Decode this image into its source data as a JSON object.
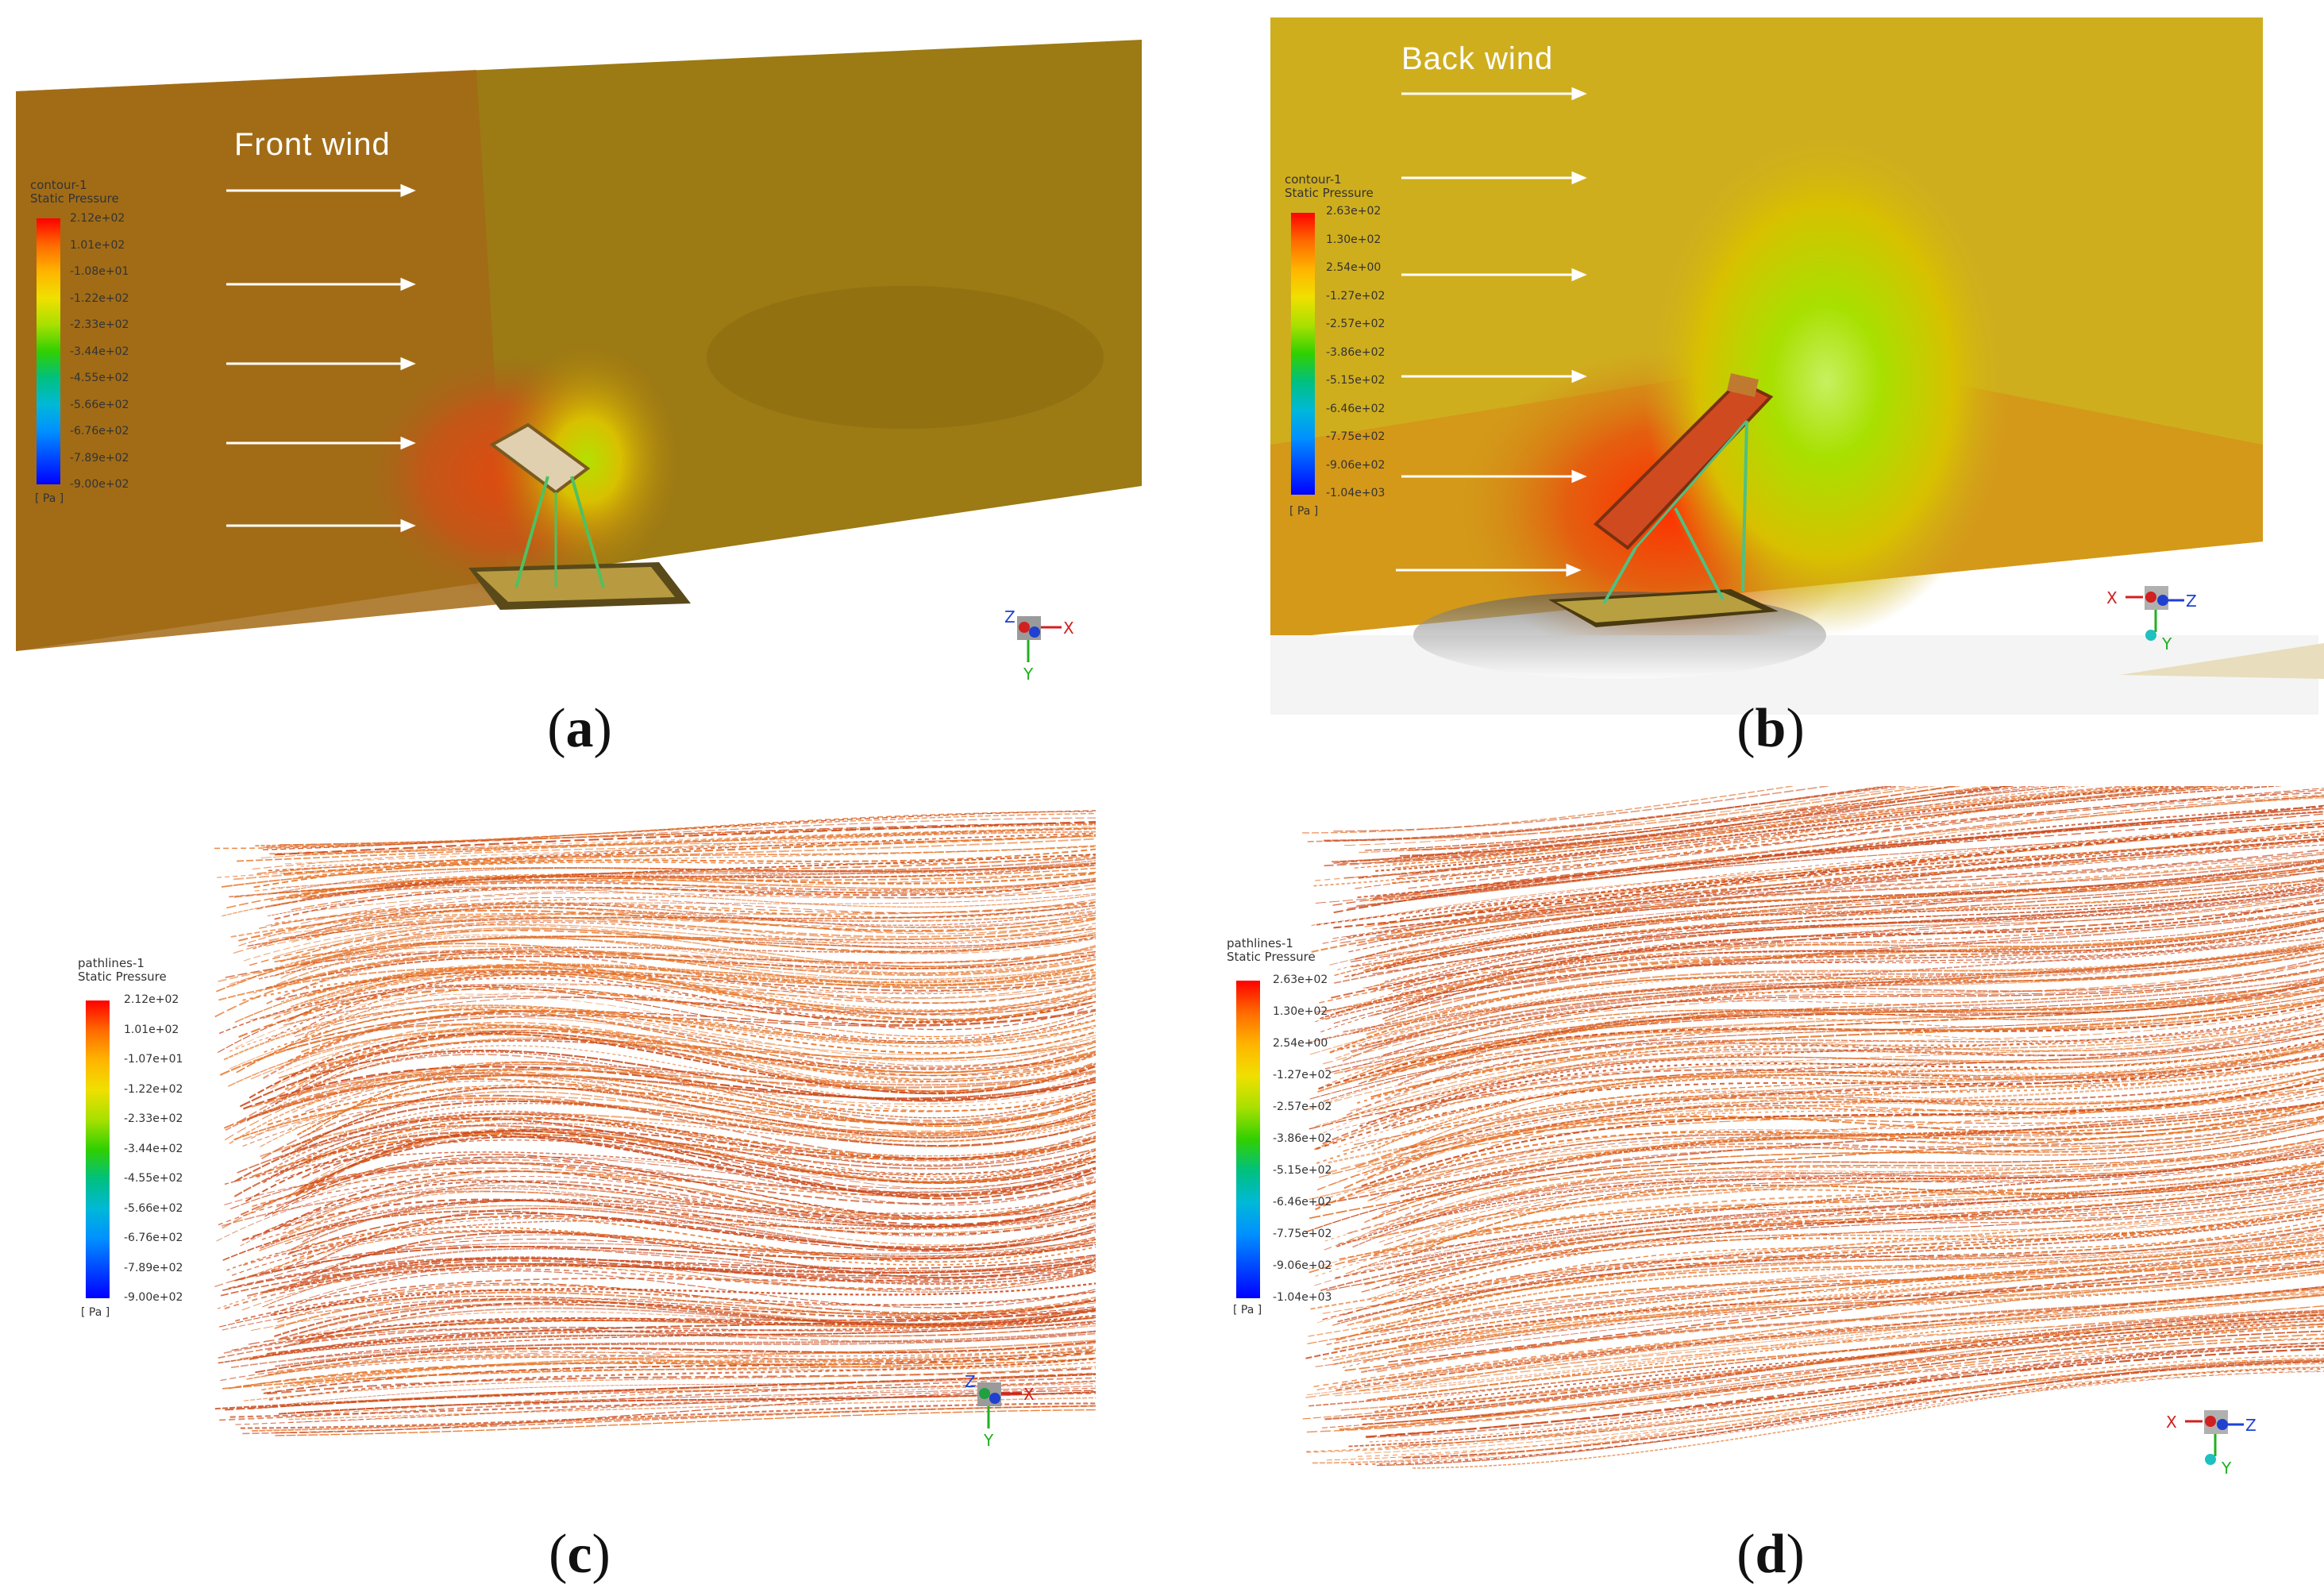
{
  "panels": {
    "a": {
      "caption_open": "(",
      "caption_letter": "a",
      "caption_close": ")",
      "wind_label": "Front  wind",
      "legend": {
        "title": "contour-1",
        "quantity": "Static Pressure",
        "ticks": [
          "2.12e+02",
          "1.01e+02",
          "-1.08e+01",
          "-1.22e+02",
          "-2.33e+02",
          "-3.44e+02",
          "-4.55e+02",
          "-5.66e+02",
          "-6.76e+02",
          "-7.89e+02",
          "-9.00e+02"
        ],
        "unit": "[ Pa ]"
      }
    },
    "b": {
      "caption_open": "(",
      "caption_letter": "b",
      "caption_close": ")",
      "wind_label": "Back  wind",
      "legend": {
        "title": "contour-1",
        "quantity": "Static Pressure",
        "ticks": [
          "2.63e+02",
          "1.30e+02",
          "2.54e+00",
          "-1.27e+02",
          "-2.57e+02",
          "-3.86e+02",
          "-5.15e+02",
          "-6.46e+02",
          "-7.75e+02",
          "-9.06e+02",
          "-1.04e+03"
        ],
        "unit": "[ Pa ]"
      }
    },
    "c": {
      "caption_open": "(",
      "caption_letter": "c",
      "caption_close": ")",
      "legend": {
        "title": "pathlines-1",
        "quantity": "Static Pressure",
        "ticks": [
          "2.12e+02",
          "1.01e+02",
          "-1.07e+01",
          "-1.22e+02",
          "-2.33e+02",
          "-3.44e+02",
          "-4.55e+02",
          "-5.66e+02",
          "-6.76e+02",
          "-7.89e+02",
          "-9.00e+02"
        ],
        "unit": "[ Pa ]"
      }
    },
    "d": {
      "caption_open": "(",
      "caption_letter": "d",
      "caption_close": ")",
      "legend": {
        "title": "pathlines-1",
        "quantity": "Static Pressure",
        "ticks": [
          "2.63e+02",
          "1.30e+02",
          "2.54e+00",
          "-1.27e+02",
          "-2.57e+02",
          "-3.86e+02",
          "-5.15e+02",
          "-6.46e+02",
          "-7.75e+02",
          "-9.06e+02",
          "-1.04e+03"
        ],
        "unit": "[ Pa ]"
      }
    }
  },
  "axis_triads": {
    "a": {
      "labels": [
        "Z",
        "X",
        "Y"
      ]
    },
    "b": {
      "labels": [
        "X",
        "Z",
        "Y"
      ]
    },
    "c": {
      "labels": [
        "Z",
        "X",
        "Y"
      ]
    },
    "d": {
      "labels": [
        "X",
        "Z",
        "Y"
      ]
    }
  },
  "colors": {
    "front_plane": "#9c7a14",
    "back_plane": "#cfae1e",
    "pathline_main": "#e8762a",
    "pathline_dark": "#cc4a1c",
    "colormap": [
      "#ff0000",
      "#ff6a00",
      "#ffb400",
      "#f0e000",
      "#a8e000",
      "#30d000",
      "#00c080",
      "#00b8d8",
      "#0090ff",
      "#0048ff",
      "#0000ff"
    ]
  }
}
